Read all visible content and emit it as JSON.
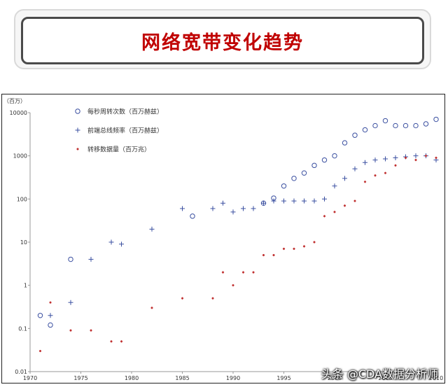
{
  "header": {
    "title": "网络宽带变化趋势"
  },
  "watermark": "头条 @CDA数据分析师",
  "chart_data": {
    "type": "scatter",
    "title": "",
    "xlabel": "",
    "ylabel": "（百万）",
    "y_scale": "log",
    "xlim": [
      1970,
      2010
    ],
    "ylim": [
      0.01,
      10000
    ],
    "x_ticks": [
      1970,
      1975,
      1980,
      1985,
      1990,
      1995,
      2000,
      2005,
      2010
    ],
    "y_ticks": [
      0.01,
      0.1,
      1,
      10,
      100,
      1000,
      10000
    ],
    "y_tick_labels": [
      "0.01",
      "0.1",
      "1",
      "10",
      "100",
      "1000",
      "10000"
    ],
    "grid": false,
    "legend_position": "top-left",
    "series": [
      {
        "name": "每秒周转次数（百万赫兹）",
        "marker": "circle",
        "color": "#3a4fa0",
        "points": [
          [
            1971,
            0.2
          ],
          [
            1972,
            0.12
          ],
          [
            1974,
            4
          ],
          [
            1986,
            40
          ],
          [
            1993,
            80
          ],
          [
            1994,
            105
          ],
          [
            1995,
            200
          ],
          [
            1996,
            300
          ],
          [
            1997,
            400
          ],
          [
            1998,
            600
          ],
          [
            1999,
            800
          ],
          [
            2000,
            1000
          ],
          [
            2001,
            2000
          ],
          [
            2002,
            3000
          ],
          [
            2003,
            4000
          ],
          [
            2004,
            5000
          ],
          [
            2005,
            6500
          ],
          [
            2006,
            5000
          ],
          [
            2007,
            5000
          ],
          [
            2008,
            5000
          ],
          [
            2009,
            5500
          ],
          [
            2010,
            7000
          ]
        ]
      },
      {
        "name": "前端总线频率（百万赫兹）",
        "marker": "plus",
        "color": "#3a4fa0",
        "points": [
          [
            1972,
            0.2
          ],
          [
            1974,
            0.4
          ],
          [
            1976,
            4
          ],
          [
            1978,
            10
          ],
          [
            1979,
            9
          ],
          [
            1982,
            20
          ],
          [
            1985,
            60
          ],
          [
            1988,
            60
          ],
          [
            1989,
            80
          ],
          [
            1990,
            50
          ],
          [
            1991,
            60
          ],
          [
            1992,
            60
          ],
          [
            1993,
            80
          ],
          [
            1994,
            90
          ],
          [
            1995,
            90
          ],
          [
            1996,
            90
          ],
          [
            1997,
            90
          ],
          [
            1998,
            90
          ],
          [
            1999,
            100
          ],
          [
            2000,
            200
          ],
          [
            2001,
            300
          ],
          [
            2002,
            500
          ],
          [
            2003,
            700
          ],
          [
            2004,
            800
          ],
          [
            2005,
            850
          ],
          [
            2006,
            900
          ],
          [
            2007,
            950
          ],
          [
            2008,
            1000
          ],
          [
            2009,
            1000
          ],
          [
            2010,
            800
          ]
        ]
      },
      {
        "name": "转移数据量（百万兆）",
        "marker": "star",
        "color": "#c03030",
        "points": [
          [
            1971,
            0.03
          ],
          [
            1972,
            0.4
          ],
          [
            1974,
            0.09
          ],
          [
            1976,
            0.09
          ],
          [
            1978,
            0.05
          ],
          [
            1979,
            0.05
          ],
          [
            1982,
            0.3
          ],
          [
            1985,
            0.5
          ],
          [
            1988,
            0.5
          ],
          [
            1989,
            2
          ],
          [
            1990,
            1
          ],
          [
            1991,
            2
          ],
          [
            1992,
            2
          ],
          [
            1993,
            5
          ],
          [
            1994,
            5
          ],
          [
            1995,
            7
          ],
          [
            1996,
            7
          ],
          [
            1997,
            8
          ],
          [
            1998,
            10
          ],
          [
            1999,
            40
          ],
          [
            2000,
            50
          ],
          [
            2001,
            70
          ],
          [
            2002,
            90
          ],
          [
            2003,
            250
          ],
          [
            2004,
            350
          ],
          [
            2005,
            400
          ],
          [
            2006,
            600
          ],
          [
            2007,
            900
          ],
          [
            2008,
            800
          ],
          [
            2009,
            1000
          ],
          [
            2010,
            900
          ]
        ]
      }
    ]
  }
}
